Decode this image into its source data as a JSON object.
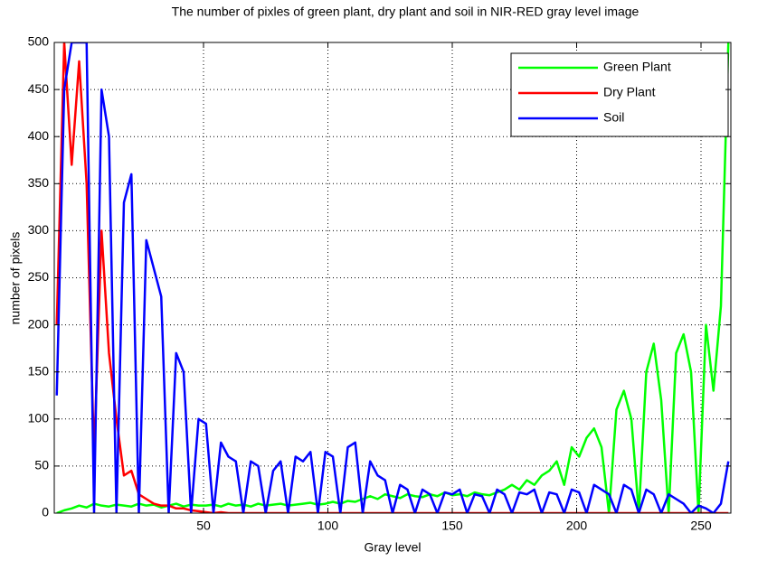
{
  "chart_data": {
    "type": "line",
    "title": "The number of pixles of green plant, dry plant and soil in NIR-RED gray level image",
    "xlabel": "Gray level",
    "ylabel": "number of pixels",
    "x": [
      -9,
      -6,
      -3,
      0,
      3,
      6,
      9,
      12,
      15,
      18,
      21,
      24,
      27,
      30,
      33,
      36,
      39,
      42,
      45,
      48,
      51,
      54,
      57,
      60,
      63,
      66,
      69,
      72,
      75,
      78,
      81,
      84,
      87,
      90,
      93,
      96,
      99,
      102,
      105,
      108,
      111,
      114,
      117,
      120,
      123,
      126,
      129,
      132,
      135,
      138,
      141,
      144,
      147,
      150,
      153,
      156,
      159,
      162,
      165,
      168,
      171,
      174,
      177,
      180,
      183,
      186,
      189,
      192,
      195,
      198,
      201,
      204,
      207,
      210,
      213,
      216,
      219,
      222,
      225,
      228,
      231,
      234,
      237,
      240,
      243,
      246,
      249,
      252,
      255,
      258,
      261
    ],
    "series": [
      {
        "name": "Green Plant",
        "color": "#00ff00",
        "values": [
          0,
          3,
          5,
          8,
          6,
          10,
          8,
          7,
          9,
          8,
          7,
          10,
          8,
          9,
          6,
          8,
          10,
          7,
          9,
          8,
          8,
          9,
          7,
          10,
          8,
          9,
          7,
          10,
          8,
          9,
          10,
          8,
          9,
          10,
          11,
          9,
          10,
          12,
          10,
          13,
          12,
          15,
          18,
          15,
          20,
          18,
          16,
          20,
          18,
          17,
          20,
          18,
          22,
          19,
          20,
          18,
          22,
          20,
          19,
          22,
          25,
          30,
          25,
          35,
          30,
          40,
          45,
          55,
          30,
          70,
          60,
          80,
          90,
          70,
          0,
          110,
          130,
          100,
          0,
          150,
          180,
          120,
          0,
          170,
          190,
          150,
          0,
          200,
          130,
          220,
          500
        ]
      },
      {
        "name": "Dry Plant",
        "color": "#ff0000",
        "values": [
          200,
          500,
          370,
          480,
          350,
          60,
          300,
          170,
          100,
          40,
          45,
          20,
          15,
          10,
          8,
          8,
          5,
          5,
          3,
          2,
          1,
          0,
          1,
          0,
          0,
          0,
          0,
          0,
          0,
          0,
          0,
          0,
          0,
          0,
          0,
          0,
          0,
          0,
          0,
          0,
          0,
          0,
          0,
          0,
          0,
          0,
          0,
          0,
          0,
          0,
          0,
          0,
          0,
          0,
          0,
          0,
          0,
          0,
          0,
          0,
          0,
          0,
          0,
          0,
          0,
          0,
          0,
          0,
          0,
          0,
          0,
          0,
          0,
          0,
          0,
          0,
          0,
          0,
          0,
          0,
          0,
          0,
          0,
          0,
          0,
          0,
          0,
          0,
          0,
          0,
          0
        ]
      },
      {
        "name": "Soil",
        "color": "#0000ff",
        "values": [
          125,
          450,
          500,
          500,
          500,
          0,
          450,
          400,
          0,
          330,
          360,
          0,
          290,
          260,
          230,
          0,
          170,
          150,
          0,
          100,
          95,
          0,
          75,
          60,
          55,
          0,
          55,
          50,
          0,
          45,
          55,
          0,
          60,
          55,
          65,
          0,
          65,
          60,
          0,
          70,
          75,
          0,
          55,
          40,
          35,
          0,
          30,
          25,
          0,
          25,
          20,
          0,
          22,
          20,
          25,
          0,
          20,
          18,
          0,
          25,
          20,
          0,
          22,
          20,
          25,
          0,
          22,
          20,
          0,
          25,
          22,
          0,
          30,
          25,
          20,
          0,
          30,
          25,
          0,
          25,
          20,
          0,
          20,
          15,
          10,
          0,
          8,
          5,
          0,
          10,
          55
        ]
      }
    ],
    "xlim": [
      -10,
      262
    ],
    "xticks": [
      50,
      100,
      150,
      200,
      250
    ],
    "ylim": [
      0,
      500
    ],
    "yticks": [
      0,
      50,
      100,
      150,
      200,
      250,
      300,
      350,
      400,
      450,
      500
    ],
    "grid": true,
    "legend": "upper right"
  }
}
